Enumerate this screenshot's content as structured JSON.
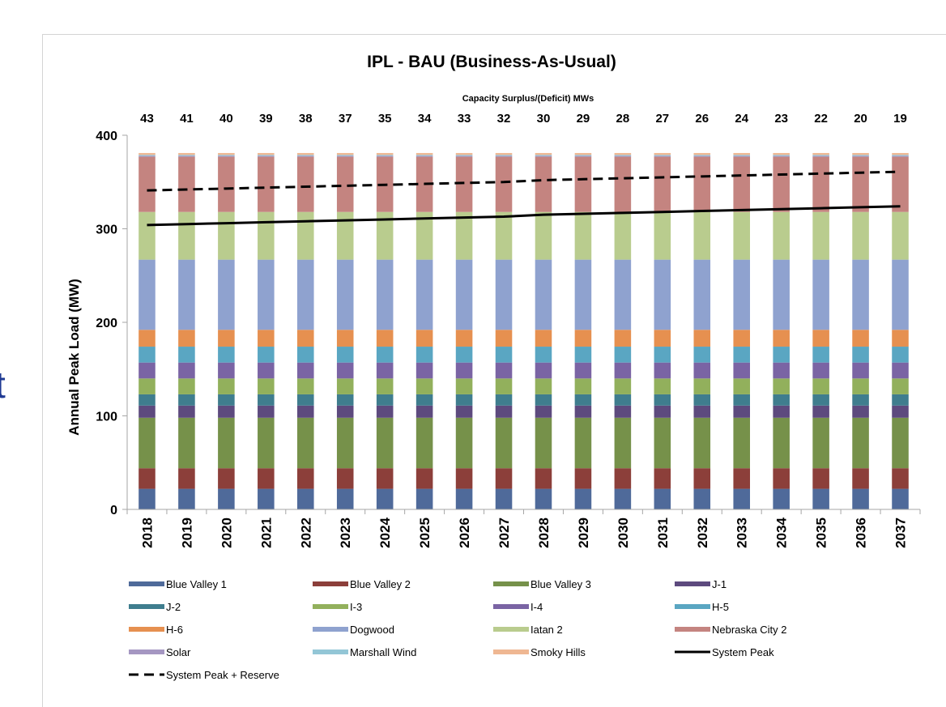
{
  "page": {
    "edge_glyph": "t"
  },
  "chart_data": {
    "type": "bar",
    "stacked": true,
    "title": "IPL - BAU (Business-As-Usual)",
    "top_axis_title": "Capacity Surplus/(Deficit) MWs",
    "surplus": [
      43,
      41,
      40,
      39,
      38,
      37,
      35,
      34,
      33,
      32,
      30,
      29,
      28,
      27,
      26,
      24,
      23,
      22,
      20,
      19
    ],
    "categories": [
      "2018",
      "2019",
      "2020",
      "2021",
      "2022",
      "2023",
      "2024",
      "2025",
      "2026",
      "2027",
      "2028",
      "2029",
      "2030",
      "2031",
      "2032",
      "2033",
      "2034",
      "2035",
      "2036",
      "2037"
    ],
    "ylabel": "Annual Peak Load (MW)",
    "ylim": [
      0,
      400
    ],
    "yticks": [
      0,
      100,
      200,
      300,
      400
    ],
    "grid": false,
    "legend_position": "bottom",
    "series": [
      {
        "name": "Blue Valley 1",
        "color": "#4f6a9a",
        "value": 22
      },
      {
        "name": "Blue Valley 2",
        "color": "#8c3f3a",
        "value": 22
      },
      {
        "name": "Blue Valley 3",
        "color": "#76914a",
        "value": 54
      },
      {
        "name": "J-1",
        "color": "#5d4a7e",
        "value": 13
      },
      {
        "name": "J-2",
        "color": "#3f7d8e",
        "value": 12
      },
      {
        "name": "I-3",
        "color": "#92b05c",
        "value": 17
      },
      {
        "name": "I-4",
        "color": "#7a64a4",
        "value": 17
      },
      {
        "name": "H-5",
        "color": "#5aa6c2",
        "value": 17
      },
      {
        "name": "H-6",
        "color": "#e69050",
        "value": 18
      },
      {
        "name": "Dogwood",
        "color": "#8fa2cf",
        "value": 75
      },
      {
        "name": "Iatan 2",
        "color": "#b9cc8e",
        "value": 51
      },
      {
        "name": "Nebraska City 2",
        "color": "#c48480",
        "value": 59
      },
      {
        "name": "Solar",
        "color": "#a597c2",
        "value": 1
      },
      {
        "name": "Marshall Wind",
        "color": "#93c6d6",
        "value": 1
      },
      {
        "name": "Smoky Hills",
        "color": "#efb792",
        "value": 2
      }
    ],
    "lines": [
      {
        "name": "System Peak",
        "color": "#000000",
        "style": "solid",
        "values": [
          304,
          305,
          306,
          307,
          308,
          309,
          310,
          311,
          312,
          313,
          315,
          316,
          317,
          318,
          319,
          320,
          321,
          322,
          323,
          324
        ]
      },
      {
        "name": "System Peak + Reserve",
        "color": "#000000",
        "style": "dashed",
        "values": [
          341,
          342,
          343,
          344,
          345,
          346,
          347,
          348,
          349,
          350,
          352,
          353,
          354,
          355,
          356,
          357,
          358,
          359,
          360,
          361
        ]
      }
    ]
  }
}
